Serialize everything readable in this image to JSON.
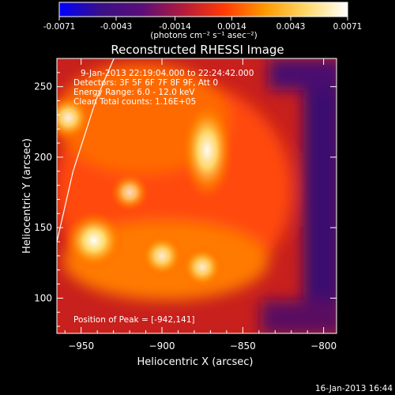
{
  "colorbar": {
    "ticks": [
      "-0.0071",
      "-0.0043",
      "-0.0014",
      "0.0014",
      "0.0043",
      "0.0071"
    ],
    "tick_values": [
      -0.0071,
      -0.0043,
      -0.0014,
      0.0014,
      0.0043,
      0.0071
    ],
    "range": [
      -0.0071,
      0.0071
    ],
    "unit_label": "(photons cm⁻² s⁻¹ asec⁻²)",
    "colors": [
      "#0000ff",
      "#3a0f88",
      "#5a0e7a",
      "#b21b3c",
      "#ff3a05",
      "#ff9a00",
      "#ffd96a",
      "#ffffff"
    ]
  },
  "chart_data": {
    "type": "heatmap",
    "title": "Reconstructed RHESSI Image",
    "xlabel": "Heliocentric X (arcsec)",
    "ylabel": "Heliocentric Y (arcsec)",
    "xlim": [
      -965,
      -792
    ],
    "ylim": [
      75,
      270
    ],
    "xticks": [
      -950,
      -900,
      -850,
      -800
    ],
    "yticks": [
      100,
      150,
      200,
      250
    ],
    "xtick_labels": [
      "−950",
      "−900",
      "−850",
      "−800"
    ],
    "ytick_labels": [
      "100",
      "150",
      "200",
      "250"
    ],
    "sources": [
      {
        "x": -942,
        "y": 141,
        "intensity": 0.0071
      },
      {
        "x": -872,
        "y": 205,
        "intensity": 0.0062
      },
      {
        "x": -900,
        "y": 130,
        "intensity": 0.0048
      },
      {
        "x": -875,
        "y": 122,
        "intensity": 0.0046
      },
      {
        "x": -958,
        "y": 228,
        "intensity": 0.0052
      },
      {
        "x": -920,
        "y": 175,
        "intensity": 0.004
      }
    ],
    "limb_line": [
      [
        -965,
        140
      ],
      [
        -955,
        190
      ],
      [
        -941,
        240
      ],
      [
        -929,
        272
      ]
    ],
    "annotations": {
      "time_range": "9-Jan-2013 22:19:04.000 to 22:24:42.000",
      "detectors": "Detectors: 3F 5F 6F 7F 8F 9F, Att 0",
      "energy": "Energy Range: 6.0 - 12.0 keV",
      "clean": "Clean     Total counts: 1.16E+05",
      "peak": "Position of Peak = [-942,141]"
    }
  },
  "footer": {
    "timestamp": "16-Jan-2013 16:44"
  }
}
